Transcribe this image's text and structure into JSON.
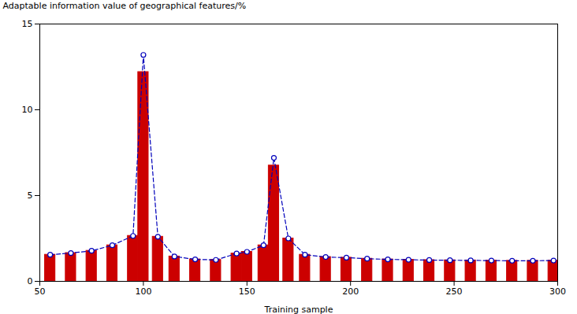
{
  "chart_data": {
    "type": "bar",
    "xlabel": "Training sample",
    "ylabel": "Adaptable information value of geographical features/%",
    "x": [
      55,
      65,
      75,
      85,
      95,
      100,
      107,
      115,
      125,
      135,
      145,
      150,
      158,
      163,
      170,
      178,
      188,
      198,
      208,
      218,
      228,
      238,
      248,
      258,
      268,
      278,
      288,
      298
    ],
    "series": [
      {
        "type": "bar",
        "color": "#CC0000",
        "values": [
          1.55,
          1.65,
          1.78,
          2.1,
          2.65,
          12.2,
          2.6,
          1.45,
          1.28,
          1.25,
          1.62,
          1.72,
          2.1,
          6.75,
          2.5,
          1.55,
          1.42,
          1.38,
          1.32,
          1.28,
          1.26,
          1.24,
          1.23,
          1.22,
          1.21,
          1.2,
          1.2,
          1.21
        ]
      },
      {
        "type": "line",
        "color": "#0000BB",
        "line_style": "dashed",
        "marker": "circle",
        "values": [
          1.55,
          1.65,
          1.78,
          2.1,
          2.65,
          13.2,
          2.6,
          1.45,
          1.28,
          1.25,
          1.62,
          1.72,
          2.1,
          7.2,
          2.5,
          1.55,
          1.42,
          1.38,
          1.32,
          1.28,
          1.26,
          1.24,
          1.23,
          1.22,
          1.21,
          1.2,
          1.2,
          1.21
        ]
      }
    ],
    "xlim": [
      50,
      300
    ],
    "ylim": [
      0,
      15
    ],
    "xticks": [
      50,
      100,
      150,
      200,
      250,
      300
    ],
    "yticks": [
      0,
      5,
      10,
      15
    ],
    "grid": false
  }
}
